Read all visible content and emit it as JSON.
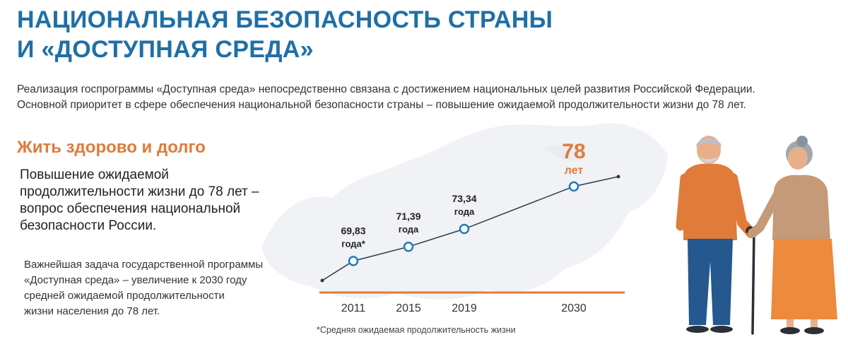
{
  "header": {
    "title_line1": "НАЦИОНАЛЬНАЯ БЕЗОПАСНОСТЬ СТРАНЫ",
    "title_line2": "И «ДОСТУПНАЯ СРЕДА»"
  },
  "intro": {
    "line1": "Реализация госпрограммы «Доступная среда» непосредственно связана с достижением национальных целей развития Российской Федерации.",
    "line2": "Основной приоритет в сфере обеспечения национальной безопасности страны – повышение ожидаемой продолжительности жизни до 78 лет."
  },
  "section": {
    "heading": "Жить здорово и долго",
    "lead_lines": [
      "Повышение ожидаемой",
      "продолжительности жизни до 78 лет –",
      "вопрос обеспечения национальной",
      "безопасности России."
    ],
    "task_lines": [
      "Важнейшая задача государственной программы",
      "«Доступная среда» – увеличение к 2030 году",
      "средней ожидаемой продолжительности",
      "жизни населения до 78 лет."
    ]
  },
  "chart_data": {
    "type": "line",
    "x": [
      "2011",
      "2015",
      "2019",
      "2030"
    ],
    "values": [
      69.83,
      71.39,
      73.34,
      78
    ],
    "point_labels": [
      [
        "69,83",
        "года*"
      ],
      [
        "71,39",
        "года"
      ],
      [
        "73,34",
        "года"
      ],
      [
        "78",
        "лет"
      ]
    ],
    "footnote": "*Средняя ожидаемая продолжительность жизни",
    "colors": {
      "line": "#2b3a4a",
      "marker": "#1f7bbf",
      "axis": "#e07b3a",
      "highlight": "#1f6fa8"
    }
  },
  "colors": {
    "title": "#1f6fa8",
    "accent": "#e07b3a",
    "map": "#eef1f4"
  },
  "illustration": {
    "icons": [
      "elderly-man-icon",
      "elderly-woman-icon",
      "cane-icon"
    ]
  }
}
